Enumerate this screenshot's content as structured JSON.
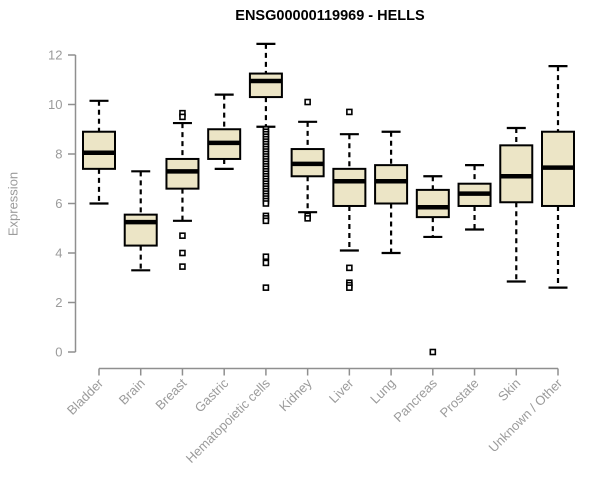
{
  "colors": {
    "background": "#ffffff",
    "title_text": "#000000",
    "axis_line": "#8f8f8f",
    "axis_text": "#9b9b9b",
    "box_fill": "#ece5c6",
    "box_stroke": "#000000",
    "outlier_fill": "#ffffff"
  },
  "chart_data": {
    "type": "boxplot",
    "title": "ENSG00000119969 - HELLS",
    "xlabel": "",
    "ylabel": "Expression",
    "ylim": [
      0,
      12
    ],
    "yticks": [
      0,
      2,
      4,
      6,
      8,
      10,
      12
    ],
    "grid": false,
    "legend": null,
    "categories": [
      "Bladder",
      "Brain",
      "Breast",
      "Gastric",
      "Hematopoietic cells",
      "Kidney",
      "Liver",
      "Lung",
      "Pancreas",
      "Prostate",
      "Skin",
      "Unknown / Other"
    ],
    "series": [
      {
        "label": "Bladder",
        "whisker_low": 6.0,
        "q1": 7.4,
        "median": 8.05,
        "q3": 8.9,
        "whisker_high": 10.15,
        "outliers": []
      },
      {
        "label": "Brain",
        "whisker_low": 3.3,
        "q1": 4.3,
        "median": 5.25,
        "q3": 5.55,
        "whisker_high": 7.3,
        "outliers": []
      },
      {
        "label": "Breast",
        "whisker_low": 5.3,
        "q1": 6.6,
        "median": 7.3,
        "q3": 7.8,
        "whisker_high": 9.25,
        "outliers": [
          9.65,
          9.5,
          4.7,
          4.0,
          3.45
        ]
      },
      {
        "label": "Gastric",
        "whisker_low": 7.4,
        "q1": 7.8,
        "median": 8.45,
        "q3": 9.0,
        "whisker_high": 10.4,
        "outliers": []
      },
      {
        "label": "Hematopoietic cells",
        "whisker_low": 9.1,
        "q1": 10.3,
        "median": 10.95,
        "q3": 11.25,
        "whisker_high": 12.45,
        "outliers": [
          9.0,
          8.9,
          8.8,
          8.7,
          8.6,
          8.5,
          8.4,
          8.3,
          8.2,
          8.1,
          8.0,
          7.9,
          7.8,
          7.7,
          7.6,
          7.5,
          7.4,
          7.3,
          7.2,
          7.1,
          7.0,
          6.9,
          6.8,
          6.7,
          6.6,
          6.5,
          6.4,
          6.3,
          6.2,
          6.1,
          6.0,
          5.5,
          5.4,
          5.3,
          3.85,
          3.6,
          2.6
        ]
      },
      {
        "label": "Kidney",
        "whisker_low": 5.65,
        "q1": 7.1,
        "median": 7.6,
        "q3": 8.2,
        "whisker_high": 9.3,
        "outliers": [
          10.1,
          5.5,
          5.4
        ]
      },
      {
        "label": "Liver",
        "whisker_low": 4.1,
        "q1": 5.9,
        "median": 6.9,
        "q3": 7.4,
        "whisker_high": 8.8,
        "outliers": [
          9.7,
          3.4,
          2.8,
          2.7,
          2.6
        ]
      },
      {
        "label": "Lung",
        "whisker_low": 4.0,
        "q1": 6.0,
        "median": 6.9,
        "q3": 7.55,
        "whisker_high": 8.9,
        "outliers": []
      },
      {
        "label": "Pancreas",
        "whisker_low": 4.65,
        "q1": 5.45,
        "median": 5.85,
        "q3": 6.55,
        "whisker_high": 7.1,
        "outliers": [
          0.0
        ]
      },
      {
        "label": "Prostate",
        "whisker_low": 4.95,
        "q1": 5.9,
        "median": 6.4,
        "q3": 6.8,
        "whisker_high": 7.55,
        "outliers": []
      },
      {
        "label": "Skin",
        "whisker_low": 2.85,
        "q1": 6.05,
        "median": 7.1,
        "q3": 8.35,
        "whisker_high": 9.05,
        "outliers": []
      },
      {
        "label": "Unknown / Other",
        "whisker_low": 2.6,
        "q1": 5.9,
        "median": 7.45,
        "q3": 8.9,
        "whisker_high": 11.55,
        "outliers": []
      }
    ]
  }
}
